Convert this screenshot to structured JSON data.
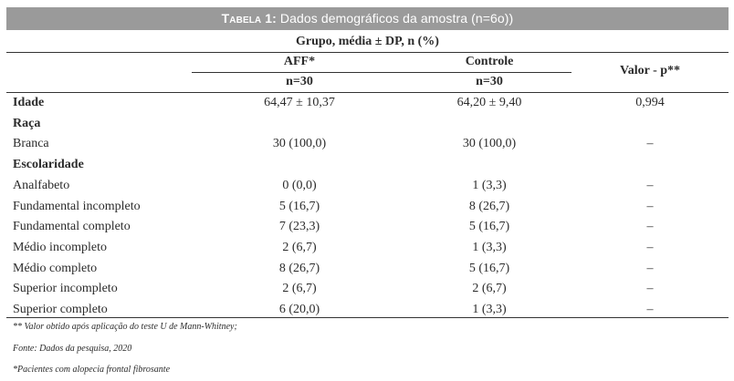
{
  "table": {
    "title_prefix": "Tabela 1:",
    "title_text": "Dados demográficos da amostra (n=6o))",
    "group_header": "Grupo, média ± DP, n (%)",
    "col_aff": "AFF*",
    "col_aff_n": "n=30",
    "col_control": "Controle",
    "col_control_n": "n=30",
    "col_p": "Valor - p**",
    "rows": [
      {
        "label": "Idade",
        "aff": "64,47 ± 10,37",
        "control": "64,20 ± 9,40",
        "p": "0,994",
        "bold": true
      },
      {
        "label": "Raça",
        "aff": "",
        "control": "",
        "p": "",
        "bold": true
      },
      {
        "label": "Branca",
        "aff": "30 (100,0)",
        "control": "30 (100,0)",
        "p": "–",
        "bold": false
      },
      {
        "label": "Escolaridade",
        "aff": "",
        "control": "",
        "p": "",
        "bold": true
      },
      {
        "label": "Analfabeto",
        "aff": "0 (0,0)",
        "control": "1 (3,3)",
        "p": "–",
        "bold": false
      },
      {
        "label": "Fundamental incompleto",
        "aff": "5 (16,7)",
        "control": "8 (26,7)",
        "p": "–",
        "bold": false
      },
      {
        "label": "Fundamental completo",
        "aff": "7 (23,3)",
        "control": "5 (16,7)",
        "p": "–",
        "bold": false
      },
      {
        "label": "Médio incompleto",
        "aff": "2 (6,7)",
        "control": "1 (3,3)",
        "p": "–",
        "bold": false
      },
      {
        "label": "Médio completo",
        "aff": "8 (26,7)",
        "control": "5 (16,7)",
        "p": "–",
        "bold": false
      },
      {
        "label": "Superior incompleto",
        "aff": "2 (6,7)",
        "control": "2 (6,7)",
        "p": "–",
        "bold": false
      },
      {
        "label": "Superior completo",
        "aff": "6 (20,0)",
        "control": "1 (3,3)",
        "p": "–",
        "bold": false
      }
    ]
  },
  "notes": {
    "note1": "** Valor obtido após aplicação do teste U de Mann-Whitney;",
    "note2": "Fonte: Dados da pesquisa, 2020",
    "note3": "*Pacientes com alopecia frontal fibrosante"
  },
  "colors": {
    "title_bg": "#9a9a9a",
    "title_fg": "#ffffff",
    "text": "#2b2b2b",
    "rule": "#333333"
  }
}
